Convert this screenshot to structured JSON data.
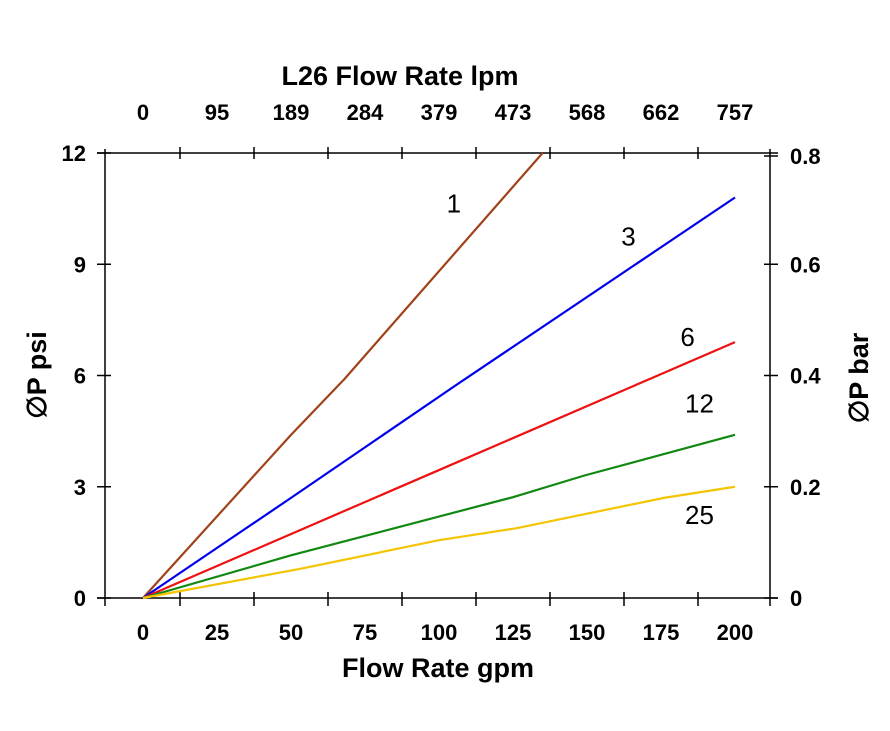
{
  "chart_data": {
    "type": "line",
    "title": "L26 Flow Rate lpm",
    "xlabel": "Flow Rate gpm",
    "ylabel": "∅P psi",
    "y2label": "∅P bar",
    "xlim": [
      -13,
      212
    ],
    "ylim": [
      0,
      12
    ],
    "grid": false,
    "x_ticks": [
      0,
      25,
      50,
      75,
      100,
      125,
      150,
      175,
      200
    ],
    "x_top_ticks": [
      "0",
      "95",
      "189",
      "284",
      "379",
      "473",
      "568",
      "662",
      "757"
    ],
    "y_ticks": [
      0,
      3,
      6,
      9,
      12
    ],
    "y2_ticks": [
      "0",
      "0.2",
      "0.4",
      "0.6",
      "0.8"
    ],
    "series": [
      {
        "name": "1",
        "color": "#a0421a",
        "x": [
          0,
          50,
          68,
          135
        ],
        "y": [
          0,
          4.4,
          5.9,
          12
        ]
      },
      {
        "name": "3",
        "color": "#0000ee",
        "x": [
          0,
          50,
          105,
          200
        ],
        "y": [
          0,
          2.7,
          5.7,
          10.8
        ]
      },
      {
        "name": "6",
        "color": "#ee1111",
        "x": [
          0,
          100,
          200
        ],
        "y": [
          0,
          3.45,
          6.9
        ]
      },
      {
        "name": "12",
        "color": "#118811",
        "x": [
          0,
          50,
          125,
          149,
          200
        ],
        "y": [
          0,
          1.15,
          2.72,
          3.3,
          4.4
        ]
      },
      {
        "name": "25",
        "color": "#f5c400",
        "x": [
          0,
          54,
          100,
          126,
          176,
          200
        ],
        "y": [
          0,
          0.8,
          1.56,
          1.88,
          2.7,
          3.0
        ]
      }
    ],
    "labels": [
      {
        "text": "1",
        "x": 105,
        "y": 10.4
      },
      {
        "text": "3",
        "x": 164,
        "y": 9.5
      },
      {
        "text": "6",
        "x": 184,
        "y": 6.8
      },
      {
        "text": "12",
        "x": 188,
        "y": 5.0
      },
      {
        "text": "25",
        "x": 188,
        "y": 2.0
      }
    ]
  }
}
